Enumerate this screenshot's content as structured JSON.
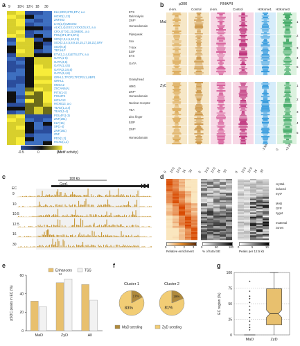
{
  "panels": {
    "a": "a",
    "b": "b",
    "c": "c",
    "d": "d",
    "e": "e",
    "f": "f",
    "g": "g"
  },
  "panel_a": {
    "time_labels": [
      "9",
      "10½",
      "12½",
      "18",
      "30"
    ],
    "tf_labels": [
      "ELK,ERG,ETS,ETV, a.o",
      "HOXD(1,13)",
      "ZNF263",
      "LHX(2,9),MEOX2",
      "ALX(1,4),ESX1,VSX2,DLX2, a.o",
      "CRX,OTX(1,2),DMBX1, a.o",
      "POU(3F1,3F4,5F1)",
      "SOX(2,3,4,5,10,21)",
      "SOX(2,3,4,5,8,9,10,15,17,18,21),SRY",
      "SOX(6,8)",
      "TEF,HLF",
      "ETV(1,2,4,5),ETS,ETV, a.o",
      "GATA(1-6)",
      "GATA(3,6)",
      "GATA(1,4,5)",
      "GATA(2,3,5,6)",
      "GATA(3,4,6)",
      "GRHL1,TFCP2,TFCP2L1,UBP1",
      "GRHL1",
      "HMGA2",
      "ZSCAN4(A)",
      "PITX(1-3)",
      "POU2F2",
      "HOXA13",
      "HOXB13, a.o",
      "TEAD(1,3,4)",
      "TEAD(1-4)",
      "POU4F(1-3)",
      "ZNF(281)",
      "KLF(15)",
      "SP(1-4)",
      "ZNF(281)",
      "ZNF",
      "PDX(1,2)",
      "HOXD(1,2)"
    ],
    "families": [
      "ETS",
      "Rel/Ankyrin",
      "ZNF*",
      "Homeodomain",
      "Pipsqueak",
      "Sox",
      "T-box",
      "bZIP",
      "ETS",
      "GATA",
      "Grainyhead",
      "HMG",
      "ZNF*",
      "Homeodomain",
      "Nuclear receptor",
      "TEA",
      "Zinc finger",
      "bZIP",
      "ZNF*",
      "Homeodomain"
    ],
    "colorbar_ticks": [
      "-0.5",
      "0",
      "0.5"
    ],
    "colorbar_title": "(Motif activity)"
  },
  "panel_b": {
    "groups": [
      "p300",
      "RNAPII",
      "",
      ""
    ],
    "columns": [
      "d-sm.",
      "Control",
      "d-sm.",
      "Control",
      "H3K4me1",
      "H3K4me3"
    ],
    "row_labels": [
      "MaD",
      "ZyD"
    ],
    "cluster_nums": [
      "1",
      "2",
      "3",
      "4",
      "5",
      "1",
      "2",
      "3",
      "4",
      "5"
    ],
    "axis_ticks": [
      "-3 kb",
      "0",
      "+3 kb"
    ]
  },
  "panel_c": {
    "scale_label": "100 kb",
    "gene": "Gsα1",
    "track_title": "EC",
    "tracks": [
      "9",
      "10",
      "10.5",
      "12.5",
      "16",
      "30"
    ]
  },
  "panel_d": {
    "col_labels": [
      "9",
      "10.5",
      "12.5",
      "16",
      "30"
    ],
    "colorbars": [
      {
        "ticks": [
          "0",
          "1",
          "2",
          "3"
        ],
        "title": "Relative enrichment"
      },
      {
        "ticks": [
          "0",
          "50",
          "100"
        ],
        "title": "% of total SE"
      },
      {
        "ticks": [
          "0",
          "5",
          "10"
        ],
        "title": "Peaks per 12.5 kb"
      }
    ],
    "right_labels": [
      "crystal-",
      "induced",
      "myt?",
      "",
      "MAB",
      "GFP",
      "zygot",
      "",
      "maternal",
      "zones"
    ]
  },
  "panel_e": {
    "chart_data": {
      "type": "bar",
      "categories": [
        "MaD",
        "ZyD",
        "All"
      ],
      "series": [
        {
          "name": "Enhancers",
          "values": [
            32,
            52,
            50
          ]
        },
        {
          "name": "TSS",
          "values": [
            26,
            56,
            33
          ]
        }
      ],
      "ylabel": "pSOC peaks in EC (%)",
      "ylim": [
        0,
        60
      ],
      "yticks": [
        "0",
        "20",
        "40",
        "60"
      ],
      "significance": "**",
      "colors": {
        "Enhancers": "#e8c06e",
        "TSS": "#f2f2f2"
      }
    }
  },
  "panel_f": {
    "chart_data": [
      {
        "type": "pie",
        "title": "Cluster 1",
        "values": [
          83,
          17
        ],
        "labels": [
          "83%",
          "17%"
        ]
      },
      {
        "type": "pie",
        "title": "Cluster 2",
        "values": [
          81,
          19
        ],
        "labels": [
          "81%",
          "19%"
        ]
      }
    ],
    "legend": [
      {
        "name": "MaD seeding",
        "color": "#b08a3c"
      },
      {
        "name": "ZyD seeding",
        "color": "#f2cd75"
      }
    ]
  },
  "panel_g": {
    "chart_data": {
      "type": "box",
      "categories": [
        "MaD",
        "ZyD"
      ],
      "ylabel": "EC region (%)",
      "ylim": [
        0,
        100
      ],
      "yticks": [
        "0",
        "25",
        "50",
        "75",
        "100"
      ],
      "boxes": [
        {
          "name": "MaD",
          "median": 0,
          "q1": 0,
          "q3": 0,
          "outliers": [
            8,
            12,
            16,
            22,
            28,
            34,
            40,
            46,
            52,
            58,
            62,
            70,
            86
          ]
        },
        {
          "name": "ZyD",
          "median": 34,
          "q1": 16,
          "q3": 74,
          "whisker_low": 0,
          "whisker_high": 100
        }
      ]
    }
  }
}
